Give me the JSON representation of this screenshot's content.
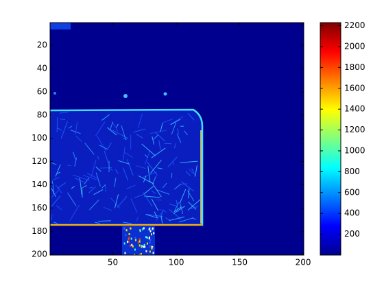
{
  "chart_data": {
    "type": "heatmap",
    "colormap": "jet",
    "xlim": [
      0.5,
      200.5
    ],
    "xticks": [
      50,
      100,
      150,
      200
    ],
    "ylim": [
      0.5,
      200.5
    ],
    "yticks": [
      20,
      40,
      60,
      80,
      100,
      120,
      140,
      160,
      180,
      200
    ],
    "clim": [
      0,
      2230
    ],
    "cticks": [
      200,
      400,
      600,
      800,
      1000,
      1200,
      1400,
      1600,
      1800,
      2000,
      2200
    ]
  }
}
